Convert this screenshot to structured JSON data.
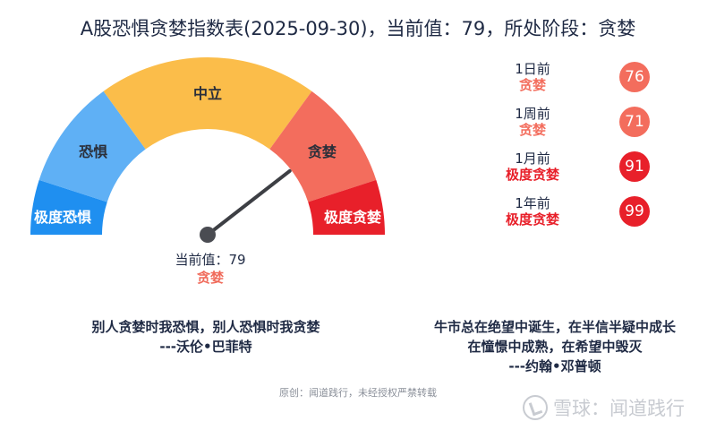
{
  "title": "A股恐惧贪婪指数表(2025-09-30)，当前值：79，所处阶段：贪婪",
  "chart_data": {
    "type": "gauge",
    "min": 0,
    "max": 100,
    "value": 79,
    "segments": [
      {
        "label": "极度恐惧",
        "from": 0,
        "to": 10,
        "color": "#1f8ff0"
      },
      {
        "label": "恐惧",
        "from": 10,
        "to": 30,
        "color": "#5fb0f5"
      },
      {
        "label": "中立",
        "from": 30,
        "to": 70,
        "color": "#fbbd4a"
      },
      {
        "label": "贪婪",
        "from": 70,
        "to": 90,
        "color": "#f36d5d"
      },
      {
        "label": "极度贪婪",
        "from": 90,
        "to": 100,
        "color": "#e8202a"
      }
    ],
    "current_label": "当前值：79",
    "current_stage": "贪婪",
    "history": [
      {
        "period": "1日前",
        "stage": "贪婪",
        "value": "76",
        "color": "#f36d5d"
      },
      {
        "period": "1周前",
        "stage": "贪婪",
        "value": "71",
        "color": "#f36d5d"
      },
      {
        "period": "1月前",
        "stage": "极度贪婪",
        "value": "91",
        "color": "#e8202a"
      },
      {
        "period": "1年前",
        "stage": "极度贪婪",
        "value": "99",
        "color": "#e8202a"
      }
    ]
  },
  "quotes": {
    "left_line1": "别人贪婪时我恐惧，别人恐惧时我贪婪",
    "left_line2": "---沃伦•巴菲特",
    "right_line1": "牛市总在绝望中诞生，在半信半疑中成长",
    "right_line2": "在憧憬中成熟，在希望中毁灭",
    "right_line3": "---约翰•邓普顿"
  },
  "footer": "原创：闻道践行，未经授权严禁转载",
  "watermark": "雪球：闻道践行"
}
